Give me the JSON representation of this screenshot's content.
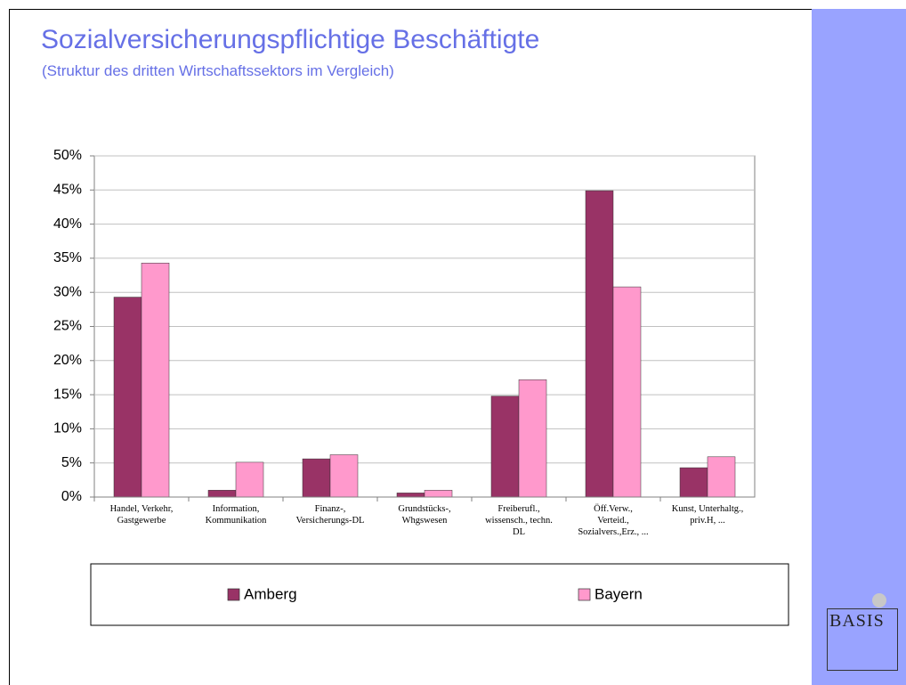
{
  "title": "Sozialversicherungspflichtige Beschäftigte",
  "subtitle": "(Struktur des dritten Wirtschaftssektors im Vergleich)",
  "logo": "BASIS",
  "chart_data": {
    "type": "bar",
    "categories": [
      "Handel, Verkehr,\nGastgewerbe",
      "Information,\nKommunikation",
      "Finanz-,\nVersicherungs-DL",
      "Grundstücks-,\nWhgswesen",
      "Freiberufl.,\nwissensch., techn.\nDL",
      "Öff.Verw.,\nVerteid.,\nSozialvers.,Erz., ...",
      "Kunst, Unterhaltg.,\npriv.H, ..."
    ],
    "series": [
      {
        "name": "Amberg",
        "color": "#993366",
        "values": [
          29.3,
          1.0,
          5.6,
          0.6,
          14.8,
          44.9,
          4.3
        ]
      },
      {
        "name": "Bayern",
        "color": "#ff99cc",
        "values": [
          34.3,
          5.1,
          6.2,
          1.0,
          17.2,
          30.8,
          5.9
        ]
      }
    ],
    "ylim": [
      0,
      50
    ],
    "yticks": [
      {
        "value": 0,
        "label": "0%"
      },
      {
        "value": 5,
        "label": "5%"
      },
      {
        "value": 10,
        "label": "10%"
      },
      {
        "value": 15,
        "label": "15%"
      },
      {
        "value": 20,
        "label": "20%"
      },
      {
        "value": 25,
        "label": "25%"
      },
      {
        "value": 30,
        "label": "30%"
      },
      {
        "value": 35,
        "label": "35%"
      },
      {
        "value": 40,
        "label": "40%"
      },
      {
        "value": 45,
        "label": "45%"
      },
      {
        "value": 50,
        "label": "50%"
      }
    ],
    "grid": true
  }
}
